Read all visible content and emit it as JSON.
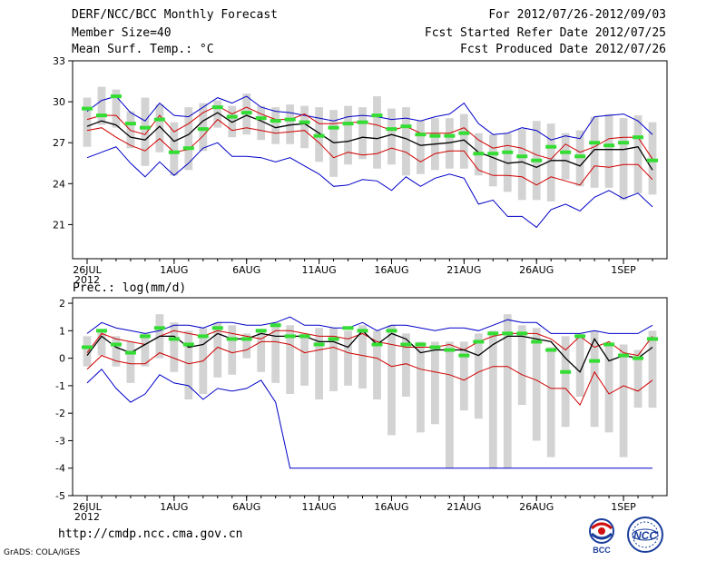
{
  "header": {
    "title": "DERF/NCC/BCC Monthly Forecast",
    "member_size": "Member Size=40",
    "variable": "Mean Surf. Temp.: °C",
    "period": "For 2012/07/26-2012/09/03",
    "started": "Fcst Started Refer Date 2012/07/25",
    "produced": "Fcst Produced Date 2012/07/26"
  },
  "footer": {
    "url": "http://cmdp.ncc.cma.gov.cn",
    "credit": "GrADS: COLA/IGES",
    "logo_left": "BCC",
    "logo_right": "NCC"
  },
  "colors": {
    "box": "#d3d3d3",
    "mean": "#000000",
    "spread": "#d00000",
    "extreme": "#0000c8",
    "median": "#33dd33"
  },
  "chart_data": [
    {
      "type": "line",
      "title": "Mean Surf. Temp.: °C",
      "x_start": "2012-07-26",
      "n_days": 40,
      "xticks": [
        {
          "day": 0,
          "label": "26JUL",
          "sub": "2012"
        },
        {
          "day": 6,
          "label": "1AUG"
        },
        {
          "day": 11,
          "label": "6AUG"
        },
        {
          "day": 16,
          "label": "11AUG"
        },
        {
          "day": 21,
          "label": "16AUG"
        },
        {
          "day": 26,
          "label": "21AUG"
        },
        {
          "day": 31,
          "label": "26AUG"
        },
        {
          "day": 37,
          "label": "1SEP"
        }
      ],
      "ylim": [
        18.5,
        33
      ],
      "yticks": [
        21,
        24,
        27,
        30,
        33
      ],
      "series": [
        {
          "name": "max",
          "values": [
            29.3,
            30.1,
            30.4,
            29.2,
            28.6,
            29.9,
            29.0,
            28.9,
            29.6,
            30.3,
            29.9,
            30.4,
            29.6,
            29.3,
            29.2,
            29.0,
            28.8,
            28.6,
            28.9,
            29.0,
            28.9,
            28.7,
            28.8,
            28.6,
            28.9,
            29.1,
            29.9,
            28.4,
            27.6,
            27.7,
            28.1,
            27.9,
            27.2,
            27.5,
            27.3,
            28.9,
            29.0,
            29.1,
            28.6,
            27.6
          ]
        },
        {
          "name": "upper",
          "values": [
            28.7,
            29.0,
            29.0,
            27.9,
            27.6,
            29.0,
            27.8,
            28.4,
            29.2,
            29.7,
            29.1,
            29.6,
            29.1,
            28.7,
            28.7,
            29.1,
            28.4,
            28.4,
            28.5,
            28.5,
            28.3,
            27.9,
            28.2,
            27.7,
            27.7,
            27.7,
            28.1,
            27.2,
            26.6,
            26.8,
            26.6,
            26.1,
            25.8,
            26.9,
            26.3,
            26.7,
            27.3,
            27.4,
            27.4,
            25.8
          ]
        },
        {
          "name": "mean",
          "values": [
            28.2,
            28.6,
            28.3,
            27.4,
            27.2,
            28.2,
            27.1,
            27.6,
            28.6,
            29.2,
            28.5,
            29.0,
            28.6,
            28.1,
            28.3,
            28.4,
            27.7,
            27.0,
            27.1,
            27.4,
            27.3,
            27.6,
            27.3,
            26.8,
            26.9,
            27.0,
            27.2,
            26.3,
            25.9,
            25.5,
            25.6,
            25.2,
            25.7,
            25.7,
            25.3,
            26.5,
            26.5,
            26.5,
            26.7,
            25.0
          ]
        },
        {
          "name": "lower",
          "values": [
            27.9,
            28.1,
            27.4,
            26.8,
            26.4,
            27.3,
            26.3,
            26.5,
            27.5,
            28.7,
            27.9,
            28.1,
            27.9,
            27.7,
            27.8,
            27.9,
            27.0,
            25.9,
            26.3,
            26.1,
            26.2,
            26.6,
            26.3,
            25.6,
            26.2,
            26.4,
            26.4,
            25.0,
            24.6,
            24.6,
            24.5,
            23.9,
            24.5,
            24.2,
            23.9,
            25.3,
            25.2,
            25.4,
            25.4,
            24.3
          ]
        },
        {
          "name": "min",
          "values": [
            25.9,
            26.3,
            26.7,
            25.5,
            24.5,
            25.6,
            24.6,
            25.5,
            26.6,
            27.0,
            26.0,
            26.0,
            25.9,
            25.6,
            25.9,
            25.3,
            24.7,
            23.8,
            23.9,
            24.3,
            24.2,
            23.5,
            24.5,
            23.8,
            24.4,
            24.7,
            24.4,
            22.5,
            22.8,
            21.6,
            21.6,
            20.8,
            22.1,
            22.5,
            22.0,
            23.0,
            23.5,
            22.9,
            23.3,
            22.3
          ]
        },
        {
          "name": "box_top",
          "values": [
            30.3,
            31.1,
            30.9,
            29.3,
            30.3,
            29.8,
            28.5,
            29.6,
            29.9,
            30.1,
            29.7,
            30.6,
            29.7,
            29.6,
            29.8,
            29.7,
            29.6,
            29.4,
            29.7,
            29.6,
            30.4,
            29.5,
            29.6,
            28.6,
            28.8,
            28.8,
            29.1,
            27.7,
            27.6,
            27.7,
            28.0,
            28.6,
            28.4,
            27.7,
            27.9,
            28.9,
            29.1,
            28.8,
            29.0,
            28.5
          ]
        },
        {
          "name": "box_bottom",
          "values": [
            26.7,
            28.3,
            28.1,
            26.6,
            25.3,
            26.3,
            24.6,
            25.0,
            26.4,
            28.1,
            27.4,
            27.6,
            27.2,
            26.9,
            26.9,
            26.6,
            25.6,
            24.5,
            25.4,
            25.8,
            25.1,
            25.4,
            24.6,
            24.7,
            25.0,
            25.1,
            25.1,
            24.6,
            23.8,
            23.4,
            22.8,
            22.8,
            22.7,
            24.3,
            23.8,
            23.7,
            23.7,
            22.8,
            23.3,
            23.2
          ]
        },
        {
          "name": "median",
          "values": [
            29.5,
            29.0,
            30.4,
            28.4,
            28.1,
            28.7,
            26.3,
            26.6,
            28.0,
            29.6,
            28.9,
            29.2,
            28.8,
            28.6,
            28.7,
            28.5,
            27.5,
            28.1,
            28.4,
            28.5,
            29.0,
            28.0,
            28.2,
            27.6,
            27.5,
            27.5,
            27.7,
            26.2,
            26.2,
            26.3,
            26.0,
            25.7,
            26.7,
            26.3,
            26.0,
            27.0,
            26.8,
            27.0,
            27.4,
            25.7
          ]
        }
      ]
    },
    {
      "type": "line",
      "title": "Prec.: log(mm/d)",
      "x_start": "2012-07-26",
      "n_days": 40,
      "xticks": [
        {
          "day": 0,
          "label": "26JUL",
          "sub": "2012"
        },
        {
          "day": 6,
          "label": "1AUG"
        },
        {
          "day": 11,
          "label": "6AUG"
        },
        {
          "day": 16,
          "label": "11AUG"
        },
        {
          "day": 21,
          "label": "16AUG"
        },
        {
          "day": 26,
          "label": "21AUG"
        },
        {
          "day": 31,
          "label": "26AUG"
        },
        {
          "day": 37,
          "label": "1SEP"
        }
      ],
      "ylim": [
        -5,
        2.2
      ],
      "yticks": [
        -5,
        -4,
        -3,
        -2,
        -1,
        0,
        1,
        2
      ],
      "series": [
        {
          "name": "max",
          "values": [
            0.9,
            1.3,
            1.1,
            1.0,
            0.9,
            1.0,
            1.2,
            1.2,
            1.1,
            1.3,
            1.3,
            1.2,
            1.2,
            1.3,
            1.5,
            1.2,
            1.2,
            1.1,
            1.1,
            1.3,
            1.0,
            1.2,
            1.2,
            1.1,
            1.0,
            1.1,
            1.1,
            1.0,
            1.2,
            1.4,
            1.3,
            1.3,
            0.9,
            0.9,
            0.9,
            1.0,
            0.9,
            0.9,
            0.9,
            1.2
          ]
        },
        {
          "name": "upper",
          "values": [
            0.2,
            0.9,
            0.7,
            0.6,
            0.5,
            0.8,
            1.0,
            0.9,
            0.8,
            1.0,
            0.9,
            0.8,
            0.7,
            1.0,
            1.0,
            0.9,
            0.8,
            0.8,
            0.7,
            0.9,
            0.6,
            0.5,
            0.4,
            0.4,
            0.4,
            0.5,
            0.3,
            0.6,
            0.8,
            0.9,
            0.9,
            0.9,
            0.7,
            0.3,
            0.8,
            0.4,
            0.6,
            0.2,
            0.1,
            0.8
          ]
        },
        {
          "name": "mean",
          "values": [
            0.1,
            0.8,
            0.4,
            0.2,
            0.5,
            0.8,
            0.8,
            0.4,
            0.5,
            0.9,
            0.7,
            0.7,
            0.9,
            0.8,
            0.8,
            0.8,
            0.6,
            0.6,
            0.4,
            1.0,
            0.5,
            0.9,
            0.7,
            0.2,
            0.3,
            0.3,
            0.3,
            0.1,
            0.5,
            0.8,
            0.8,
            0.7,
            0.6,
            0.0,
            -0.5,
            0.7,
            -0.1,
            0.1,
            0.0,
            0.4
          ]
        },
        {
          "name": "lower",
          "values": [
            -0.4,
            0.1,
            -0.1,
            -0.2,
            -0.2,
            0.2,
            0.0,
            -0.2,
            -0.1,
            0.4,
            0.2,
            0.3,
            0.6,
            0.6,
            0.5,
            0.2,
            0.3,
            0.4,
            0.2,
            0.1,
            0.0,
            -0.3,
            -0.2,
            -0.4,
            -0.5,
            -0.6,
            -0.8,
            -0.5,
            -0.3,
            -0.3,
            -0.6,
            -0.8,
            -1.1,
            -1.1,
            -1.7,
            -0.5,
            -1.3,
            -1.0,
            -1.2,
            -0.8
          ]
        },
        {
          "name": "min",
          "values": [
            -0.9,
            -0.4,
            -1.1,
            -1.6,
            -1.3,
            -0.6,
            -0.9,
            -1.0,
            -1.5,
            -1.1,
            -1.2,
            -1.1,
            -0.8,
            -1.6,
            -4.0,
            -4.0,
            -4.0,
            -4.0,
            -4.0,
            -4.0,
            -4.0,
            -4.0,
            -4.0,
            -4.0,
            -4.0,
            -4.0,
            -4.0,
            -4.0,
            -4.0,
            -4.0,
            -4.0,
            -4.0,
            -4.0,
            -4.0,
            -4.0,
            -4.0,
            -4.0,
            -4.0,
            -4.0,
            -4.0
          ]
        },
        {
          "name": "box_top",
          "values": [
            0.8,
            1.0,
            0.8,
            0.6,
            0.9,
            1.6,
            1.3,
            1.0,
            1.1,
            1.3,
            1.2,
            0.9,
            1.0,
            1.3,
            1.2,
            0.9,
            1.1,
            1.1,
            1.0,
            1.2,
            1.0,
            1.2,
            0.9,
            0.6,
            0.6,
            0.6,
            0.6,
            0.9,
            1.0,
            1.6,
            1.2,
            1.1,
            0.4,
            0.8,
            0.9,
            1.0,
            0.5,
            0.5,
            0.3,
            1.0
          ]
        },
        {
          "name": "box_bottom",
          "values": [
            -0.3,
            0.1,
            -0.3,
            -0.9,
            -0.3,
            0.0,
            -0.5,
            -1.5,
            -1.3,
            -0.7,
            -0.6,
            0.0,
            -0.5,
            -0.9,
            -1.3,
            -1.0,
            -1.5,
            -1.2,
            -1.0,
            -1.1,
            -1.5,
            -2.8,
            -1.4,
            -2.7,
            -2.4,
            -4.0,
            -1.9,
            -2.2,
            -4.0,
            -4.0,
            -1.7,
            -3.0,
            -3.6,
            -2.5,
            -1.4,
            -2.5,
            -2.7,
            -3.6,
            -1.8,
            -1.8
          ]
        },
        {
          "name": "median",
          "values": [
            0.4,
            1.0,
            0.5,
            0.2,
            0.8,
            1.1,
            0.7,
            0.5,
            0.8,
            1.1,
            0.7,
            0.7,
            1.0,
            1.2,
            0.8,
            0.8,
            0.5,
            0.7,
            1.1,
            1.0,
            0.5,
            1.0,
            0.5,
            0.5,
            0.4,
            0.3,
            0.1,
            0.6,
            0.9,
            0.9,
            0.9,
            0.6,
            0.3,
            -0.5,
            0.8,
            -0.1,
            0.5,
            0.1,
            0.0,
            0.7
          ]
        }
      ]
    }
  ]
}
